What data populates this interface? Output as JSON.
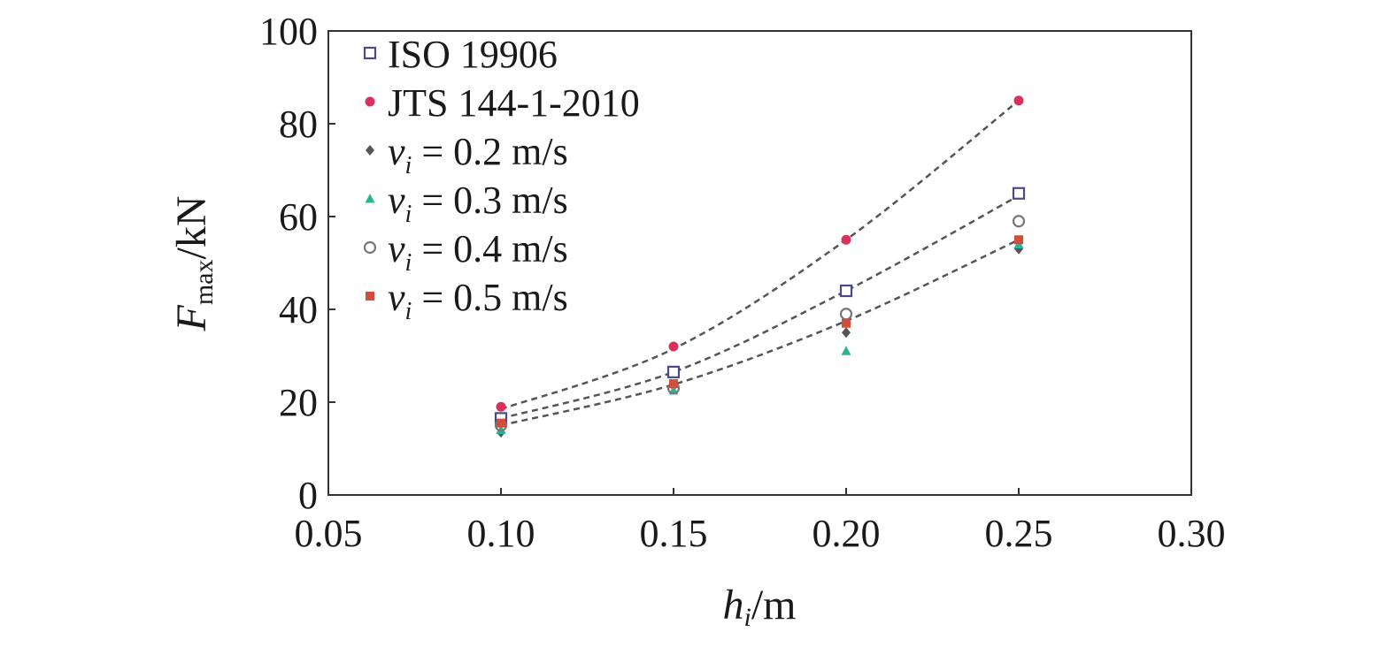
{
  "chart_data": {
    "type": "scatter",
    "title": "",
    "xlabel": {
      "main": "h",
      "sub": "i",
      "unit": "/m"
    },
    "ylabel": {
      "main": "F",
      "sub": "max",
      "unit": "/kN"
    },
    "xlim": [
      0.05,
      0.3
    ],
    "ylim": [
      0,
      100
    ],
    "x_ticks": [
      "0.05",
      "0.10",
      "0.15",
      "0.20",
      "0.25",
      "0.30"
    ],
    "y_ticks": [
      "0",
      "20",
      "40",
      "60",
      "80",
      "100"
    ],
    "grid": false,
    "legend_position": "top-left",
    "x": [
      0.1,
      0.15,
      0.2,
      0.25
    ],
    "series": [
      {
        "name": "ISO 19906",
        "marker": "square-open",
        "color": "#4a4a8a",
        "values": [
          16.5,
          26.5,
          44,
          65
        ]
      },
      {
        "name": "JTS 144-1-2010",
        "marker": "circle-filled",
        "color": "#d8315b",
        "values": [
          19,
          32,
          55,
          85
        ]
      },
      {
        "name": "v_i = 0.2 m/s",
        "label": {
          "var": "v",
          "sub": "i",
          "rest": " = 0.2 m/s"
        },
        "marker": "diamond-filled",
        "color": "#555555",
        "values": [
          13.5,
          23.5,
          35,
          53
        ]
      },
      {
        "name": "v_i = 0.3 m/s",
        "label": {
          "var": "v",
          "sub": "i",
          "rest": " = 0.3 m/s"
        },
        "marker": "triangle-filled",
        "color": "#2bb39a",
        "values": [
          14,
          22.5,
          31,
          54
        ]
      },
      {
        "name": "v_i = 0.4 m/s",
        "label": {
          "var": "v",
          "sub": "i",
          "rest": " = 0.4 m/s"
        },
        "marker": "circle-open",
        "color": "#777777",
        "values": [
          15,
          23,
          39,
          59
        ]
      },
      {
        "name": "v_i = 0.5 m/s",
        "label": {
          "var": "v",
          "sub": "i",
          "rest": " = 0.5 m/s"
        },
        "marker": "square-filled",
        "color": "#d24d3a",
        "values": [
          15.5,
          24,
          37,
          55
        ]
      }
    ],
    "trend_lines": [
      {
        "of": "JTS 144-1-2010",
        "style": "dashed",
        "color": "#555555",
        "x": [
          0.1,
          0.15,
          0.2,
          0.25
        ],
        "values": [
          18.5,
          31.5,
          55,
          85
        ]
      },
      {
        "of": "ISO 19906",
        "style": "dashed",
        "color": "#555555",
        "x": [
          0.1,
          0.15,
          0.2,
          0.25
        ],
        "values": [
          16.5,
          26.5,
          44,
          64.5
        ]
      },
      {
        "of": "v_i",
        "style": "dashed",
        "color": "#555555",
        "x": [
          0.1,
          0.15,
          0.2,
          0.25
        ],
        "values": [
          15,
          23.8,
          37.5,
          55
        ]
      }
    ]
  }
}
